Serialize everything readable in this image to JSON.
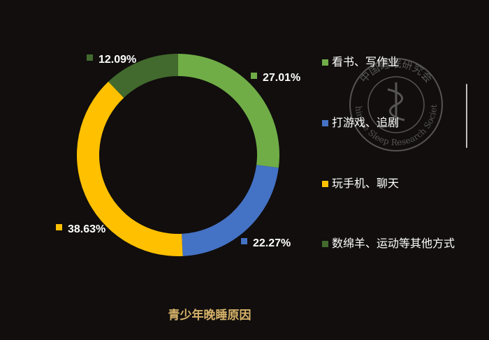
{
  "chart_data": {
    "type": "pie",
    "title": "青少年晚睡原因",
    "categories": [
      "看书、写作业",
      "打游戏、追剧",
      "玩手机、聊天",
      "数绵羊、运动等其他方式"
    ],
    "values": [
      27.01,
      22.27,
      38.63,
      12.09
    ],
    "value_labels": [
      "27.01%",
      "22.27%",
      "38.63%",
      "12.09%"
    ],
    "colors": [
      "#70ad47",
      "#4472c4",
      "#ffc000",
      "#426a2e"
    ],
    "donut": true,
    "legend": "right"
  },
  "watermark": {
    "text_top": "中国睡眠研究会",
    "text_bottom": "Chinese Sleep Research Society"
  }
}
